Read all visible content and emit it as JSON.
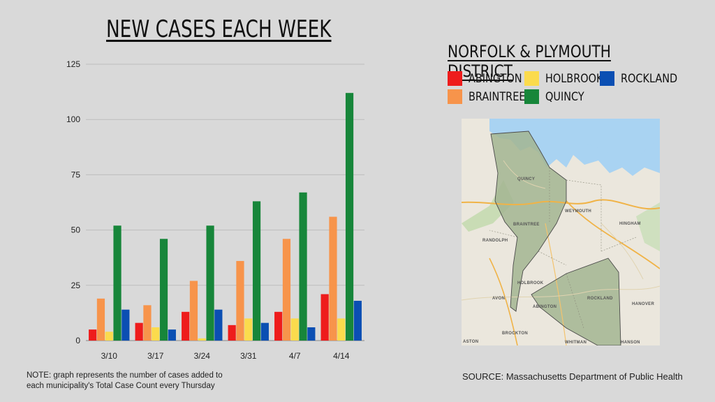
{
  "chart_data": {
    "type": "bar",
    "title": "NEW CASES EACH WEEK",
    "categories": [
      "3/10",
      "3/17",
      "3/24",
      "3/31",
      "4/7",
      "4/14"
    ],
    "series": [
      {
        "name": "ABINGTON",
        "color": "#ee1c1c",
        "values": [
          5,
          8,
          13,
          7,
          13,
          21
        ]
      },
      {
        "name": "BRAINTREE",
        "color": "#f7944b",
        "values": [
          19,
          16,
          27,
          36,
          46,
          56
        ]
      },
      {
        "name": "HOLBROOK",
        "color": "#fbdb4d",
        "values": [
          4,
          6,
          1,
          10,
          10,
          10
        ]
      },
      {
        "name": "QUINCY",
        "color": "#17863a",
        "values": [
          52,
          46,
          52,
          63,
          67,
          112
        ]
      },
      {
        "name": "ROCKLAND",
        "color": "#0b4fb3",
        "values": [
          14,
          5,
          14,
          8,
          6,
          18
        ]
      }
    ],
    "ylim": [
      0,
      125
    ],
    "yticks": [
      0,
      25,
      50,
      75,
      100,
      125
    ],
    "grid": true,
    "legend_position": "right"
  },
  "legend_title": "NORFOLK & PLYMOUTH DISTRICT",
  "map": {
    "labels": [
      "QUINCY",
      "WEYMOUTH",
      "BRAINTREE",
      "HINGHAM",
      "RANDOLPH",
      "HOLBROOK",
      "ROCKLAND",
      "ABINGTON",
      "AVON",
      "HANOVER",
      "BROCKTON",
      "WHITMAN",
      "HANSON",
      "ASTON"
    ],
    "colors": {
      "water": "#a9d3f2",
      "land": "#ece8df",
      "district": "#9aae8a",
      "roads": "#f0b347"
    }
  },
  "note": "NOTE: graph represents the number of cases added to each municipality's Total Case Count every Thursday",
  "source": "SOURCE: Massachusetts Department of Public Health"
}
